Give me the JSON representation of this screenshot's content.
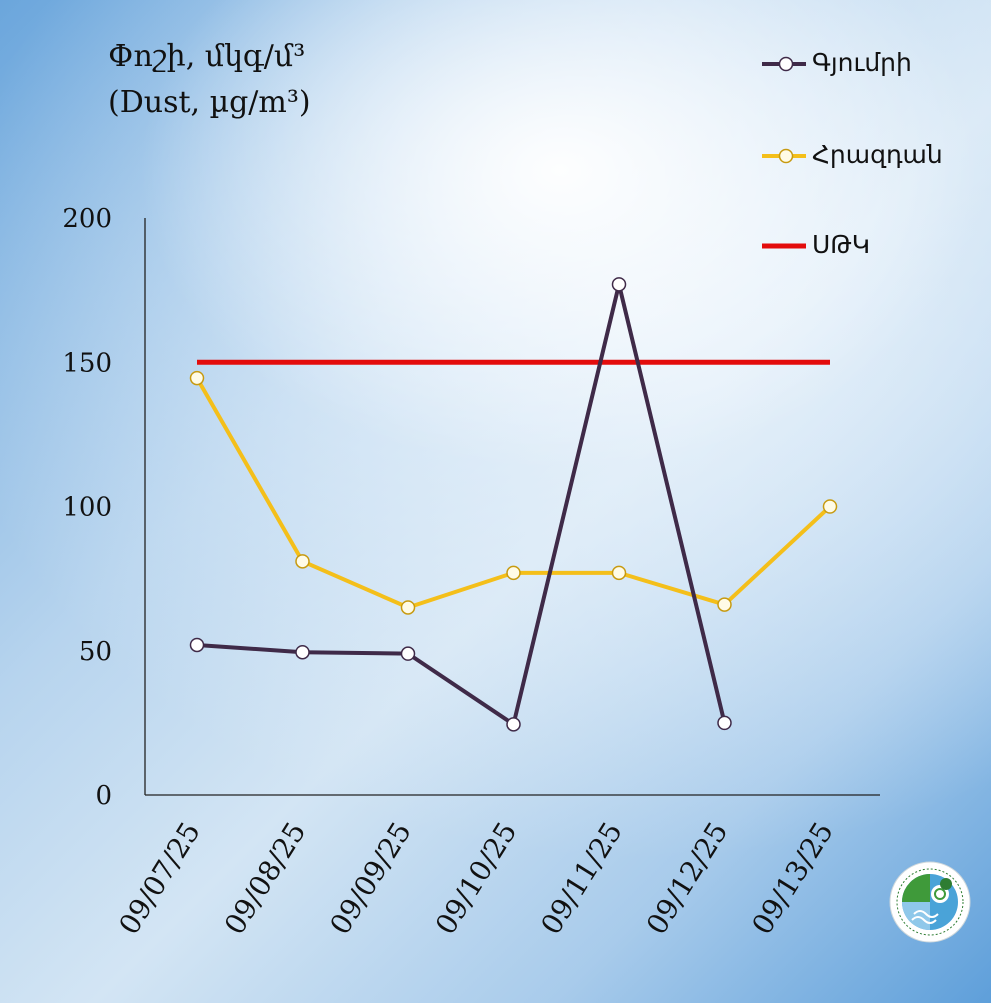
{
  "title": {
    "line1": "Փոշի, մկգ/մ³",
    "line2": "(Dust, µg/m³)"
  },
  "chart_data": {
    "type": "line",
    "categories": [
      "09/07/25",
      "09/08/25",
      "09/09/25",
      "09/10/25",
      "09/11/25",
      "09/12/25",
      "09/13/25"
    ],
    "yticks": [
      "0",
      "50",
      "100",
      "150",
      "200"
    ],
    "ylim": [
      0,
      200
    ],
    "grid": false,
    "legend_position": "top-right",
    "series": [
      {
        "name": "Գյումրի",
        "color": "#3f2a48",
        "marker": "circle",
        "values": [
          52,
          49.5,
          49,
          24.5,
          177,
          25,
          null
        ]
      },
      {
        "name": "Հրազդան",
        "color": "#f4bf1a",
        "marker": "circle",
        "values": [
          144.5,
          81,
          65,
          77,
          77,
          66,
          100
        ]
      },
      {
        "name": "ՍԹԿ",
        "color": "#e30c0c",
        "marker": "none",
        "values": [
          150,
          150,
          150,
          150,
          150,
          150,
          150
        ]
      }
    ]
  },
  "logo": {
    "icon": "ministry-emblem-icon"
  }
}
